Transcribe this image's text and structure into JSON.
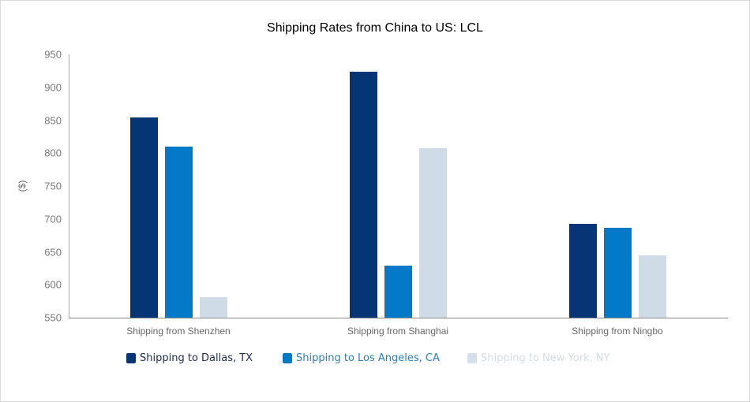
{
  "chart_data": {
    "type": "bar",
    "title": "Shipping Rates from China to US: LCL",
    "xlabel": "",
    "ylabel": "($)",
    "ylim": [
      550,
      950
    ],
    "yticks": [
      950,
      900,
      850,
      800,
      750,
      700,
      650,
      600,
      550
    ],
    "grid": false,
    "legend_position": "bottom",
    "categories": [
      "Shipping from Shenzhen",
      "Shipping from Shanghai",
      "Shipping from Ningbo"
    ],
    "series": [
      {
        "name": "Shipping to Dallas, TX",
        "color": "#063575",
        "values": [
          854,
          924,
          693
        ]
      },
      {
        "name": "Shipping to Los Angeles, CA",
        "color": "#0479c8",
        "values": [
          810,
          629,
          687
        ]
      },
      {
        "name": "Shipping to New York, NY",
        "color": "#cfdce7",
        "values": [
          581,
          807,
          645
        ]
      }
    ]
  },
  "legend": {
    "items": [
      {
        "label": "Shipping to Dallas, TX",
        "text_color": "#1d2a4a"
      },
      {
        "label": "Shipping to Los Angeles, CA",
        "text_color": "#2a7fb8"
      },
      {
        "label": "Shipping to New York, NY",
        "text_color": "#d3dce4"
      }
    ]
  }
}
